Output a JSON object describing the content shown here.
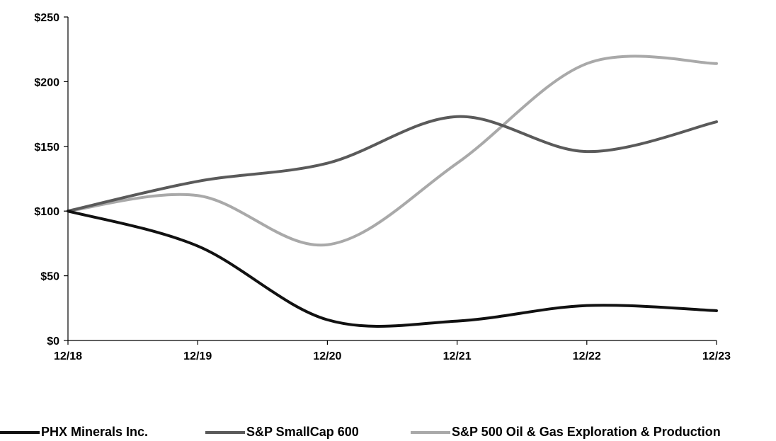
{
  "chart_data": {
    "type": "line",
    "title": "",
    "xlabel": "",
    "ylabel": "",
    "categories": [
      "12/18",
      "12/19",
      "12/20",
      "12/21",
      "12/22",
      "12/23"
    ],
    "y_ticks": [
      "$0",
      "$50",
      "$100",
      "$150",
      "$200",
      "$250"
    ],
    "ylim": [
      0,
      250
    ],
    "grid": false,
    "legend_position": "bottom",
    "series": [
      {
        "name": "PHX Minerals Inc.",
        "color": "#111111",
        "values": [
          100,
          73,
          16,
          15,
          27,
          23
        ]
      },
      {
        "name": "S&P SmallCap 600",
        "color": "#5a5a5a",
        "values": [
          100,
          123,
          137,
          173,
          146,
          169
        ]
      },
      {
        "name": "S&P 500 Oil & Gas Exploration & Production",
        "color": "#a9a9a9",
        "values": [
          100,
          112,
          74,
          137,
          214,
          214
        ]
      }
    ]
  }
}
